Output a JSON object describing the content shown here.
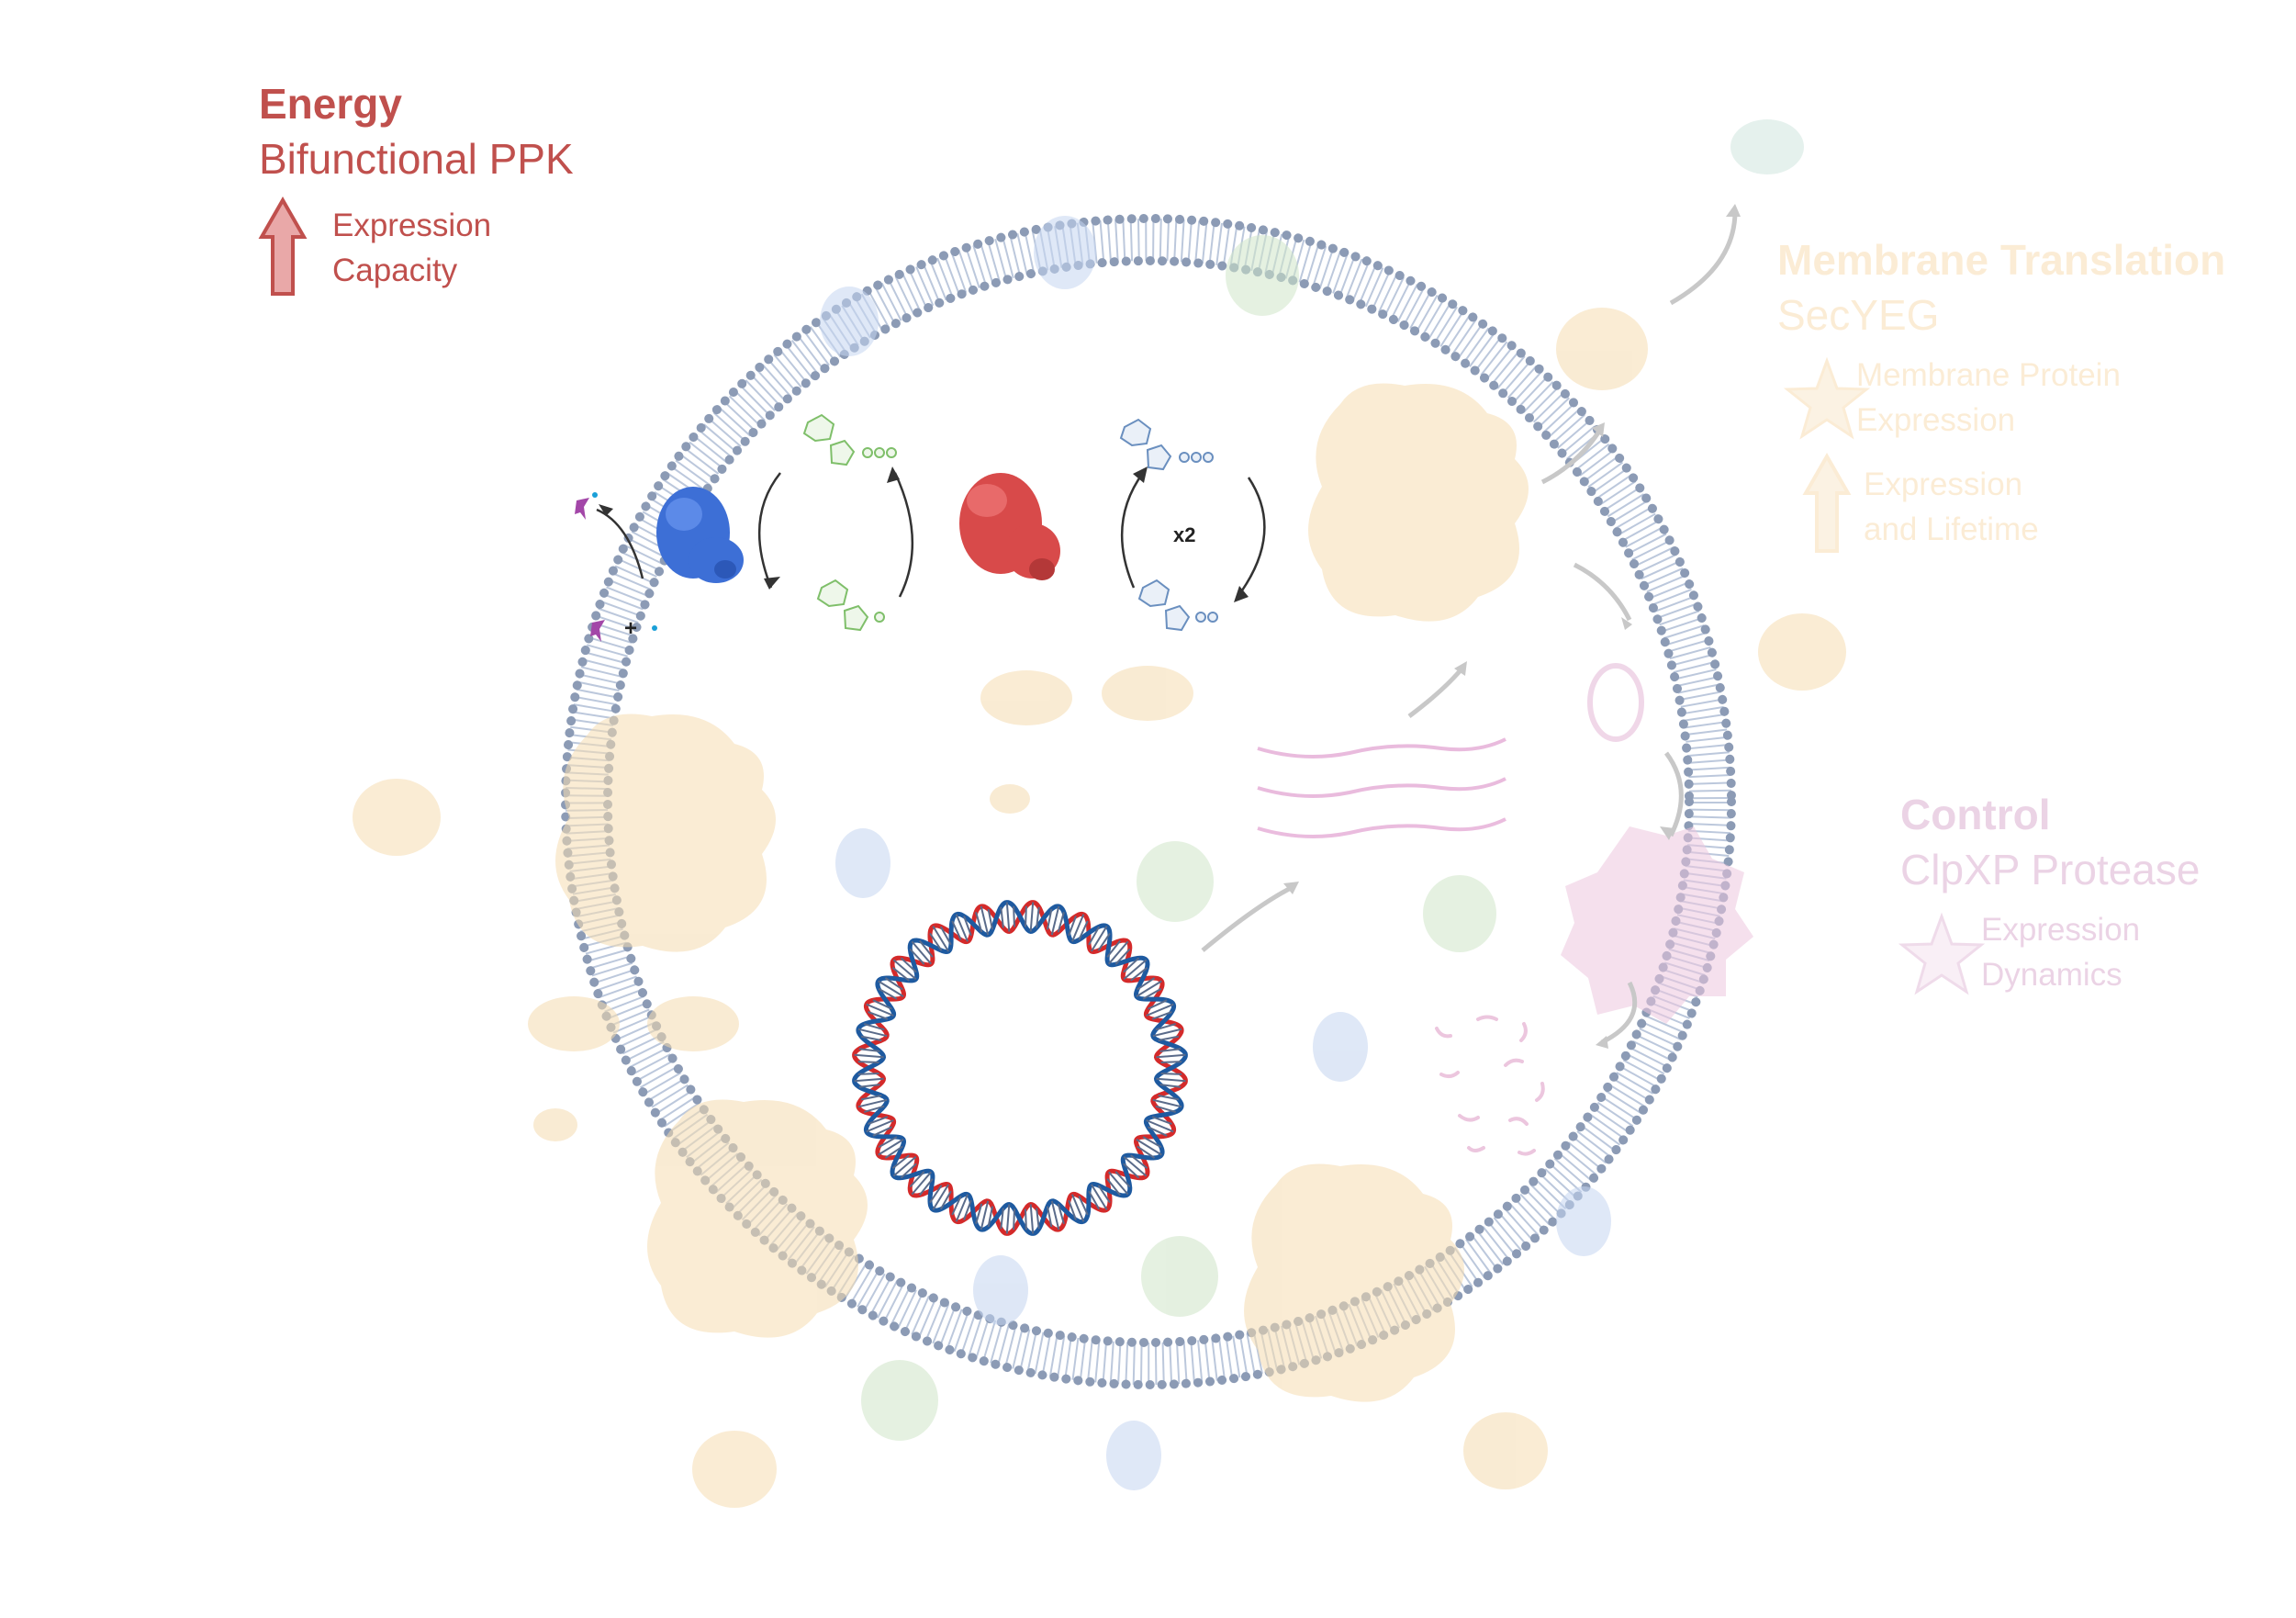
{
  "energy": {
    "title": "Energy",
    "subtitle": "Bifunctional PPK",
    "items": [
      "Expression",
      "Capacity"
    ],
    "icon": "up-arrow-icon",
    "color": "#c0504d"
  },
  "membrane": {
    "title": "Membrane Translation",
    "subtitle": "SecYEG",
    "item1": [
      "Membrane Protein",
      "Expression"
    ],
    "item2": [
      "Expression",
      "and Lifetime"
    ],
    "icons": [
      "star-icon",
      "up-arrow-icon"
    ],
    "color": "#f5c98a"
  },
  "control": {
    "title": "Control",
    "subtitle": "ClpXP Protease",
    "items": [
      "Expression",
      "Dynamics"
    ],
    "icon": "star-icon",
    "color": "#d8a8cc"
  },
  "cycle": {
    "multiplier": "x2",
    "plus": "+"
  },
  "colors": {
    "membrane_bead": "#8c9bb5",
    "dna_red": "#d42a2a",
    "dna_blue": "#1e5aa0",
    "ppk_blue": "#3d6fd6",
    "ppk_red": "#d84a4a"
  }
}
